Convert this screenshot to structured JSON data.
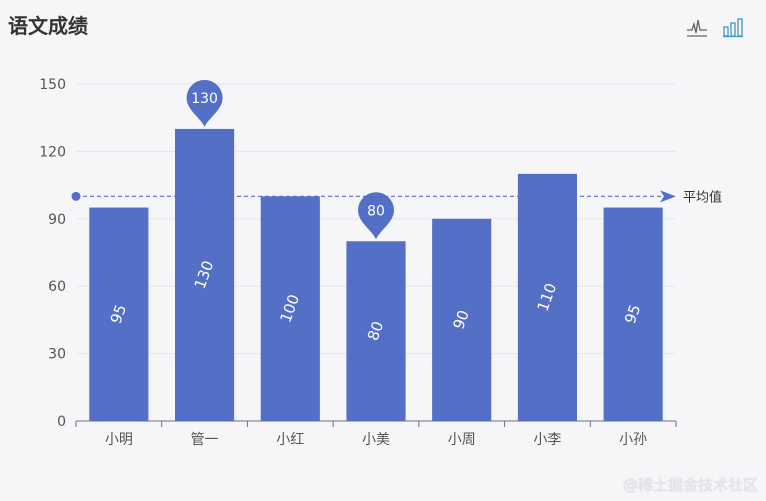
{
  "title": "语文成绩",
  "toolbox": {
    "line_icon": "line-chart-icon",
    "bar_icon": "bar-chart-icon"
  },
  "watermark": "@稀土掘金技术社区",
  "colors": {
    "bar": "#5470c6",
    "axis": "#6e7079",
    "grid": "#e0e6f1",
    "text": "#555",
    "mark_label": "#ffffff"
  },
  "chart_data": {
    "type": "bar",
    "categories": [
      "小明",
      "管一",
      "小红",
      "小美",
      "小周",
      "小李",
      "小孙"
    ],
    "values": [
      95,
      130,
      100,
      80,
      90,
      110,
      95
    ],
    "ylim": [
      0,
      150
    ],
    "yticks": [
      0,
      30,
      60,
      90,
      120,
      150
    ],
    "grid": true,
    "data_labels": {
      "rotated": true
    },
    "mark_points": [
      {
        "category": "管一",
        "value": 130,
        "label": "130",
        "kind": "max"
      },
      {
        "category": "小美",
        "value": 80,
        "label": "80",
        "kind": "min"
      }
    ],
    "mark_line": {
      "label": "平均值",
      "value": 100,
      "kind": "average"
    }
  }
}
